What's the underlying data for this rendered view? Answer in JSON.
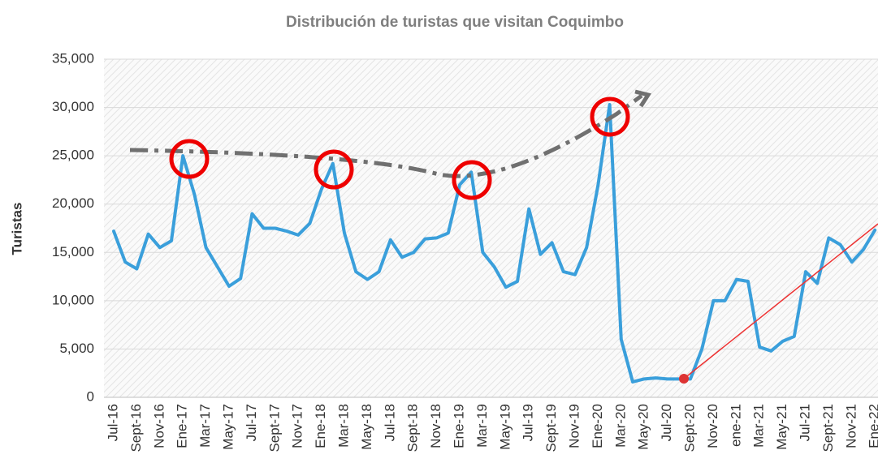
{
  "chart_data": {
    "type": "line",
    "title": "Distribución de turistas que visitan Coquimbo",
    "y_label": "Turistas",
    "categories": [
      "Jul-16",
      null,
      "Sept-16",
      null,
      "Nov-16",
      null,
      "Ene-17",
      null,
      "Mar-17",
      null,
      "May-17",
      null,
      "Jul-17",
      null,
      "Sept-17",
      null,
      "Nov-17",
      null,
      "Ene-18",
      null,
      "Mar-18",
      null,
      "May-18",
      null,
      "Jul-18",
      null,
      "Sept-18",
      null,
      "Nov-18",
      null,
      "Ene-19",
      null,
      "Mar-19",
      null,
      "May-19",
      null,
      "Jul-19",
      null,
      "Sept-19",
      null,
      "Nov-19",
      null,
      "Ene-20",
      null,
      "Mar-20",
      null,
      "May-20",
      null,
      "Jul-20",
      null,
      "Sept-20",
      null,
      "Nov-20",
      null,
      "ene-21",
      null,
      "Mar-21",
      null,
      "May-21",
      null,
      "Jul-21",
      null,
      "Sept-21",
      null,
      "Nov-21",
      null,
      "Ene-22"
    ],
    "series": [
      {
        "name": "Turistas",
        "color": "#3a9fdb",
        "values": [
          17200,
          14000,
          13300,
          16900,
          15500,
          16200,
          25000,
          21000,
          15500,
          13500,
          11500,
          12300,
          19000,
          17500,
          17500,
          17200,
          16800,
          18000,
          21500,
          24200,
          17000,
          13000,
          12200,
          13000,
          16300,
          14500,
          15000,
          16400,
          16500,
          17000,
          22000,
          23300,
          15000,
          13500,
          11400,
          12000,
          19500,
          14800,
          16000,
          13000,
          12700,
          15500,
          22000,
          30300,
          6000,
          1600,
          1900,
          2000,
          1900,
          1900,
          1900,
          5000,
          10000,
          10000,
          12200,
          12000,
          5200,
          4800,
          5800,
          6300,
          13000,
          11800,
          16500,
          15800,
          14000,
          15300,
          17300
        ]
      }
    ],
    "ylim": [
      0,
      35000
    ],
    "yticks": [
      0,
      {
        "value": 5000,
        "label": "5,000"
      },
      {
        "value": 10000,
        "label": "10,000"
      },
      {
        "value": 15000,
        "label": "15,000"
      },
      {
        "value": 20000,
        "label": "20,000"
      },
      {
        "value": 25000,
        "label": "25,000"
      },
      {
        "value": 30000,
        "label": "30,000"
      },
      {
        "value": 35000,
        "label": "35,000"
      }
    ],
    "grid": true
  }
}
